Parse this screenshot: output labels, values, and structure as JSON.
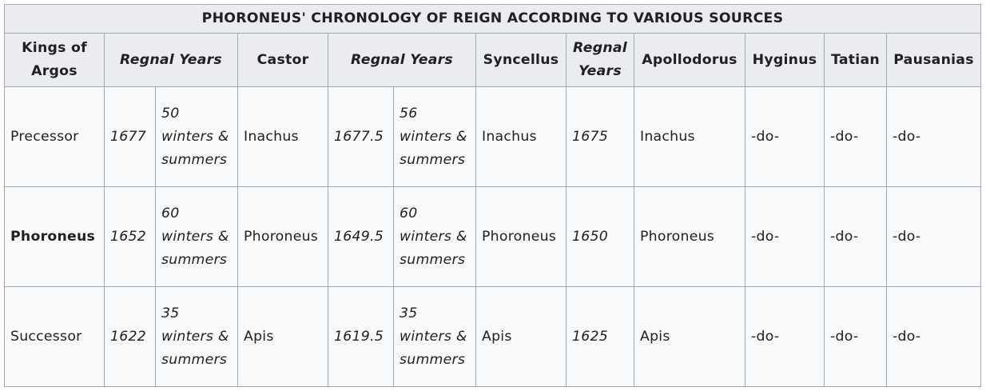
{
  "table": {
    "title": "PHORONEUS' CHRONOLOGY OF REIGN ACCORDING TO VARIOUS SOURCES",
    "headers": {
      "kings": "Kings of Argos",
      "regnal1": "Regnal Years",
      "castor": "Castor",
      "regnal2": "Regnal Years",
      "syncellus": "Syncellus",
      "regnal3": "Regnal Years",
      "apollodorus": "Apollodorus",
      "hyginus": "Hyginus",
      "tatian": "Tatian",
      "pausanias": "Pausanias"
    },
    "rows": [
      {
        "king": "Precessor",
        "year1": "1677",
        "span1": "50 winters & summers",
        "castor": "Inachus",
        "year2": "1677.5",
        "span2": "56 winters & summers",
        "syncellus": "Inachus",
        "year3": "1675",
        "apollodorus": "Inachus",
        "hyginus": "-do-",
        "tatian": "-do-",
        "pausanias": "-do-"
      },
      {
        "king": "Phoroneus",
        "year1": "1652",
        "span1": "60 winters & summers",
        "castor": "Phoroneus",
        "year2": "1649.5",
        "span2": "60 winters & summers",
        "syncellus": "Phoroneus",
        "year3": "1650",
        "apollodorus": "Phoroneus",
        "hyginus": "-do-",
        "tatian": "-do-",
        "pausanias": "-do-"
      },
      {
        "king": "Successor",
        "year1": "1622",
        "span1": "35 winters & summers",
        "castor": "Apis",
        "year2": "1619.5",
        "span2": "35 winters & summers",
        "syncellus": "Apis",
        "year3": "1625",
        "apollodorus": "Apis",
        "hyginus": "-do-",
        "tatian": "-do-",
        "pausanias": "-do-"
      }
    ]
  }
}
